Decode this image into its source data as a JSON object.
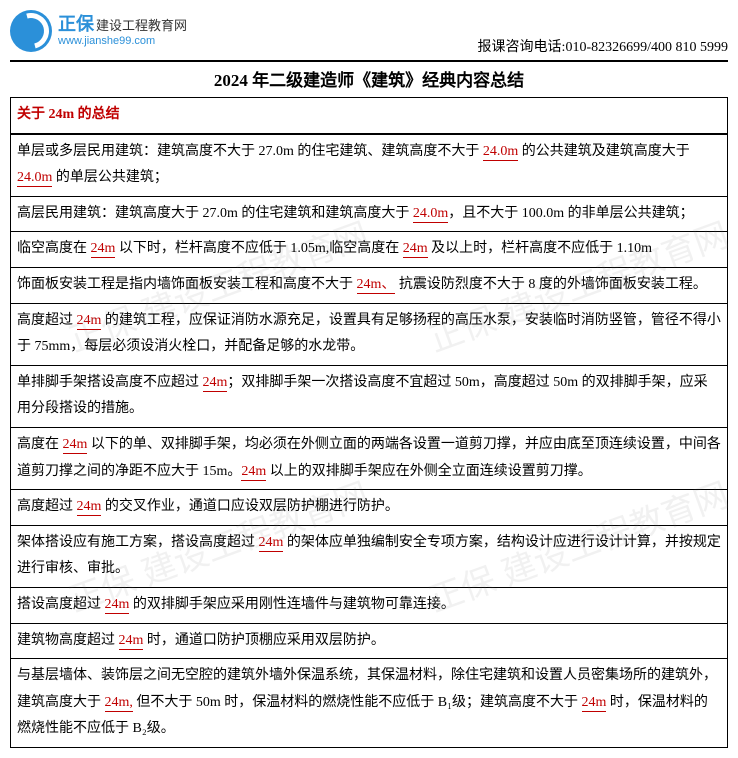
{
  "header": {
    "brand": "正保",
    "brand_sub": "建设工程教育网",
    "domain": "www.jianshe99.com",
    "phone_label": "报课咨询电话:",
    "phone_value": "010-82326699/400 810 5999"
  },
  "title": "2024 年二级建造师《建筑》经典内容总结",
  "section_heading": "关于 24m 的总结",
  "rows": [
    {
      "pre": "单层或多层民用建筑：建筑高度不大于 27.0m 的住宅建筑、建筑高度不大于 ",
      "u1": "24.0m",
      "mid1": " 的公共建筑及建筑高度大于 ",
      "u2": "24.0m",
      "post": " 的单层公共建筑；"
    },
    {
      "pre": "高层民用建筑：建筑高度大于 27.0m 的住宅建筑和建筑高度大于 ",
      "u1": "24.0m",
      "post": "，且不大于 100.0m 的非单层公共建筑；"
    },
    {
      "pre": "临空高度在 ",
      "u1": "24m",
      "mid1": " 以下时，栏杆高度不应低于 1.05m,临空高度在 ",
      "u2": "24m",
      "post": " 及以上时，栏杆高度不应低于 1.10m"
    },
    {
      "pre": "饰面板安装工程是指内墙饰面板安装工程和高度不大于 ",
      "u1": "24m、",
      "post": " 抗震设防烈度不大于 8 度的外墙饰面板安装工程。"
    },
    {
      "pre": "高度超过 ",
      "u1": "24m",
      "post": " 的建筑工程，应保证消防水源充足，设置具有足够扬程的高压水泵，安装临时消防竖管，管径不得小于 75mm，每层必须设消火栓口，并配备足够的水龙带。"
    },
    {
      "pre": "单排脚手架搭设高度不应超过 ",
      "u1": "24m",
      "post": "；双排脚手架一次搭设高度不宜超过 50m，高度超过 50m 的双排脚手架，应采用分段搭设的措施。"
    },
    {
      "pre": "高度在 ",
      "u1": "24m",
      "mid1": " 以下的单、双排脚手架，均必须在外侧立面的两端各设置一道剪刀撑，并应由底至顶连续设置，中间各道剪刀撑之间的净距不应大于 15m。",
      "u2": "24m",
      "post": " 以上的双排脚手架应在外侧全立面连续设置剪刀撑。"
    },
    {
      "pre": "高度超过 ",
      "u1": "24m",
      "post": " 的交叉作业，通道口应设双层防护棚进行防护。"
    },
    {
      "pre": "架体搭设应有施工方案，搭设高度超过 ",
      "u1": "24m",
      "post": " 的架体应单独编制安全专项方案，结构设计应进行设计计算，并按规定进行审核、审批。"
    },
    {
      "pre": "搭设高度超过 ",
      "u1": "24m",
      "post": " 的双排脚手架应采用刚性连墙件与建筑物可靠连接。"
    },
    {
      "pre": "建筑物高度超过 ",
      "u1": "24m",
      "post": " 时，通道口防护顶棚应采用双层防护。"
    },
    {
      "pre": "与基层墙体、装饰层之间无空腔的建筑外墙外保温系统，其保温材料，除住宅建筑和设置人员密集场所的建筑外，建筑高度大于 ",
      "u1": "24m,",
      "mid1": " 但不大于 50m 时，保温材料的燃烧性能不应低于 B₁级；建筑高度不大于 ",
      "u2": "24m",
      "post": " 时，保温材料的燃烧性能不应低于 B₂级。"
    }
  ],
  "watermark_text": "正保 建设工程教育网",
  "colors": {
    "accent": "#c00000",
    "brand": "#2b90d9",
    "border": "#000000"
  }
}
